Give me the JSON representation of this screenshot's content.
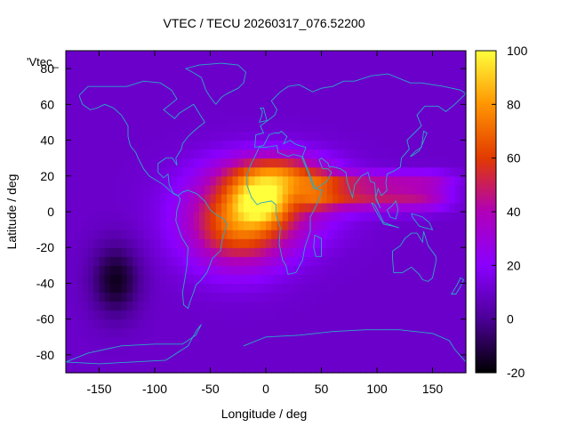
{
  "chart_data": {
    "type": "heatmap",
    "title": "VTEC / TECU 20260317_076.52200",
    "xlabel": "Longitude / deg",
    "ylabel": "Latitude / deg",
    "key_label": "'Vtec_",
    "xlim": [
      -180,
      180
    ],
    "ylim": [
      -90,
      90
    ],
    "x_ticks": [
      -150,
      -100,
      -50,
      0,
      50,
      100,
      150
    ],
    "y_ticks": [
      -80,
      -60,
      -40,
      -20,
      0,
      20,
      40,
      60,
      80
    ],
    "colorbar": {
      "range": [
        -20,
        100
      ],
      "ticks": [
        -20,
        0,
        20,
        40,
        60,
        80,
        100
      ],
      "palette": [
        "#000000",
        "#4b0096",
        "#8a00ff",
        "#b000b8",
        "#e23a00",
        "#ff9500",
        "#ffff3c"
      ]
    },
    "background_value": 10,
    "features": [
      {
        "name": "equatorial-anomaly-peak-africa",
        "lon": -5,
        "lat": 5,
        "value": 88
      },
      {
        "name": "southern-crest-atlantic",
        "lon": -25,
        "lat": -12,
        "value": 62
      },
      {
        "name": "northern-crest-africa",
        "lon": 10,
        "lat": 20,
        "value": 72
      },
      {
        "name": "indian-ocean-tongue",
        "lon": 95,
        "lat": 8,
        "value": 55
      },
      {
        "name": "pacific-depletion-minimum",
        "lon": -135,
        "lat": -38,
        "value": -16
      }
    ],
    "coastline_color": "#2aa8c8"
  }
}
